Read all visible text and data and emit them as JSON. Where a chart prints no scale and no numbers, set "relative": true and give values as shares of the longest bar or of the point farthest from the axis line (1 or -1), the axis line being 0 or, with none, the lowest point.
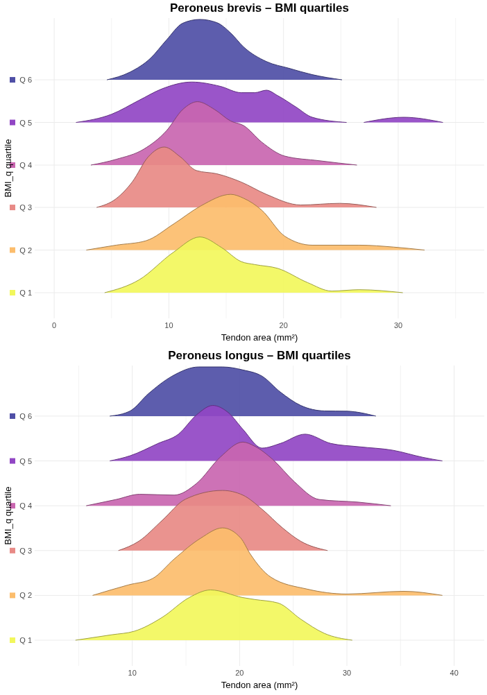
{
  "chart_data": [
    {
      "type": "area",
      "title": "Peroneus brevis – BMI quartiles",
      "xlabel": "Tendon area (mm²)",
      "ylabel": "BMI_q quartile",
      "relative": true,
      "grid": true,
      "legend": "left",
      "xlim": [
        -1.7,
        37.5
      ],
      "xticks": [
        0,
        {
          "value": 5,
          "label": null
        },
        10,
        {
          "value": 15,
          "label": null
        },
        20,
        {
          "value": 25,
          "label": null
        },
        30,
        {
          "value": 35,
          "label": null
        }
      ],
      "series": [
        {
          "name": "Q 6",
          "color": "#4f4fa6",
          "x": [
            4.6,
            6.6,
            8.4,
            9.8,
            11.2,
            12.7,
            14.2,
            15.4,
            16.5,
            18.5,
            20.5,
            22.5,
            25.1
          ],
          "values": [
            0.779,
            0.807,
            0.858,
            0.925,
            0.986,
            1,
            0.988,
            0.95,
            0.9,
            0.846,
            0.821,
            0.798,
            0.779
          ]
        },
        {
          "name": "Q 5",
          "color": "#9146c4",
          "x": [
            1.9,
            5.0,
            7.4,
            9.4,
            12.0,
            14.5,
            16.3,
            17.5,
            18.5,
            19.5,
            21.1,
            22.5,
            25.5,
            26.2,
            27.0,
            30.5,
            33.9
          ],
          "values": [
            0.623,
            0.653,
            0.704,
            0.746,
            0.771,
            0.755,
            0.732,
            0.732,
            0.741,
            0.721,
            0.679,
            0.642,
            0.623,
            null,
            0.623,
            0.642,
            0.623
          ]
        },
        {
          "name": "Q 4",
          "color": "#c966b0",
          "x": [
            3.2,
            5.4,
            7.8,
            9.8,
            11.2,
            12.5,
            14.0,
            15.4,
            16.5,
            18.1,
            20.1,
            23.1,
            26.4
          ],
          "values": [
            0.467,
            0.488,
            0.525,
            0.593,
            0.67,
            0.699,
            0.67,
            0.628,
            0.612,
            0.551,
            0.5,
            0.483,
            0.467
          ]
        },
        {
          "name": "Q 3",
          "color": "#e88a86",
          "x": [
            3.7,
            5.4,
            6.8,
            8.2,
            9.6,
            11.0,
            12.4,
            14.2,
            16.3,
            18.5,
            21.5,
            24.9,
            28.1
          ],
          "values": [
            0.312,
            0.344,
            0.405,
            0.497,
            0.533,
            0.497,
            0.447,
            0.435,
            0.405,
            0.36,
            0.321,
            0.327,
            0.312
          ]
        },
        {
          "name": "Q 2",
          "color": "#fcbd6c",
          "x": [
            2.8,
            5.4,
            8.0,
            10.4,
            12.8,
            15.4,
            16.5,
            18.1,
            20.1,
            22.5,
            26.6,
            29.6,
            32.3
          ],
          "values": [
            0.156,
            0.174,
            0.19,
            0.251,
            0.318,
            0.36,
            0.346,
            0.302,
            0.207,
            0.174,
            0.174,
            0.167,
            0.156
          ]
        },
        {
          "name": "Q 1",
          "color": "#f2f75c",
          "x": [
            4.4,
            7.4,
            10.4,
            12.7,
            14.6,
            16.3,
            17.5,
            19.5,
            22.1,
            24.2,
            26.6,
            30.4
          ],
          "values": [
            0,
            0.047,
            0.148,
            0.204,
            0.165,
            0.114,
            0.103,
            0.089,
            0.037,
            0.006,
            0.011,
            0
          ]
        }
      ]
    },
    {
      "type": "area",
      "title": "Peroneus longus – BMI quartiles",
      "xlabel": "Tendon area (mm²)",
      "ylabel": "BMI_q quartile",
      "relative": true,
      "grid": true,
      "legend": "left",
      "xlim": [
        0.9,
        42.8
      ],
      "xticks": [
        {
          "value": 5,
          "label": null
        },
        10,
        {
          "value": 15,
          "label": null
        },
        20,
        {
          "value": 25,
          "label": null
        },
        30,
        {
          "value": 35,
          "label": null
        },
        40
      ],
      "series": [
        {
          "name": "Q 6",
          "color": "#4f4fa6",
          "x": [
            7.9,
            9.8,
            11.5,
            13.7,
            16.2,
            18.4,
            20.3,
            22.1,
            23.8,
            25.7,
            27.9,
            30.0,
            32.7
          ],
          "values": [
            0.82,
            0.839,
            0.902,
            0.966,
            1,
            1,
            0.989,
            0.966,
            0.908,
            0.859,
            0.839,
            0.838,
            0.82
          ]
        },
        {
          "name": "Q 5",
          "color": "#9146c4",
          "x": [
            7.9,
            9.8,
            12.4,
            14.3,
            16.0,
            17.5,
            19.0,
            20.3,
            22.1,
            23.8,
            26.1,
            28.5,
            31.1,
            34.3,
            37.1,
            38.9
          ],
          "values": [
            0.656,
            0.675,
            0.72,
            0.754,
            0.825,
            0.859,
            0.831,
            0.772,
            0.703,
            0.72,
            0.754,
            0.72,
            0.708,
            0.695,
            0.669,
            0.656
          ]
        },
        {
          "name": "Q 4",
          "color": "#c966b0",
          "x": [
            5.7,
            8.5,
            10.7,
            13.9,
            16.0,
            18.2,
            20.3,
            21.4,
            23.1,
            25.1,
            27.4,
            31.1,
            34.1
          ],
          "values": [
            0.492,
            0.515,
            0.534,
            0.531,
            0.574,
            0.67,
            0.725,
            0.71,
            0.661,
            0.58,
            0.515,
            0.505,
            0.492
          ]
        },
        {
          "name": "Q 3",
          "color": "#e88a86",
          "x": [
            8.7,
            10.6,
            12.8,
            14.95,
            18.4,
            20.3,
            22.1,
            24.0,
            25.7,
            28.2
          ],
          "values": [
            0.328,
            0.362,
            0.439,
            0.516,
            0.548,
            0.531,
            0.479,
            0.411,
            0.362,
            0.328
          ]
        },
        {
          "name": "Q 2",
          "color": "#fcbd6c",
          "x": [
            6.3,
            9.6,
            11.9,
            13.9,
            16.4,
            18.4,
            20.1,
            21.0,
            22.9,
            26.3,
            30.0,
            35.3,
            38.9
          ],
          "values": [
            0.164,
            0.202,
            0.226,
            0.297,
            0.374,
            0.411,
            0.374,
            0.315,
            0.231,
            0.187,
            0.169,
            0.179,
            0.164
          ]
        },
        {
          "name": "Q 1",
          "color": "#f2f75c",
          "x": [
            4.7,
            8.1,
            10.2,
            12.8,
            15.3,
            17.3,
            20.3,
            21.4,
            23.6,
            25.7,
            27.9,
            30.5
          ],
          "values": [
            0,
            0.02,
            0.033,
            0.084,
            0.156,
            0.184,
            0.156,
            0.149,
            0.136,
            0.077,
            0.025,
            0
          ]
        }
      ]
    }
  ]
}
